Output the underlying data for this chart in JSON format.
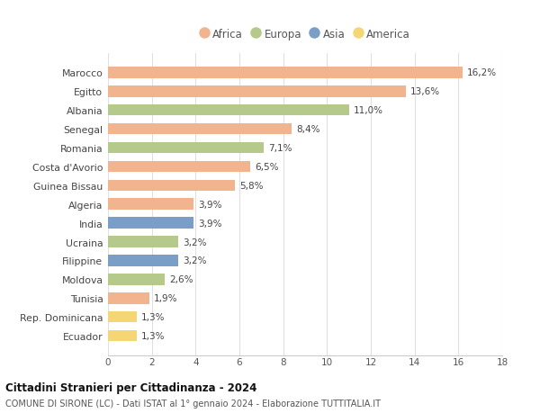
{
  "categories": [
    "Marocco",
    "Egitto",
    "Albania",
    "Senegal",
    "Romania",
    "Costa d'Avorio",
    "Guinea Bissau",
    "Algeria",
    "India",
    "Ucraina",
    "Filippine",
    "Moldova",
    "Tunisia",
    "Rep. Dominicana",
    "Ecuador"
  ],
  "values": [
    16.2,
    13.6,
    11.0,
    8.4,
    7.1,
    6.5,
    5.8,
    3.9,
    3.9,
    3.2,
    3.2,
    2.6,
    1.9,
    1.3,
    1.3
  ],
  "labels": [
    "16,2%",
    "13,6%",
    "11,0%",
    "8,4%",
    "7,1%",
    "6,5%",
    "5,8%",
    "3,9%",
    "3,9%",
    "3,2%",
    "3,2%",
    "2,6%",
    "1,9%",
    "1,3%",
    "1,3%"
  ],
  "continents": [
    "Africa",
    "Africa",
    "Europa",
    "Africa",
    "Europa",
    "Africa",
    "Africa",
    "Africa",
    "Asia",
    "Europa",
    "Asia",
    "Europa",
    "Africa",
    "America",
    "America"
  ],
  "colors": {
    "Africa": "#F2B48E",
    "Europa": "#B5C98A",
    "Asia": "#7B9EC7",
    "America": "#F5D674"
  },
  "legend_order": [
    "Africa",
    "Europa",
    "Asia",
    "America"
  ],
  "xlim": [
    0,
    18
  ],
  "xticks": [
    0,
    2,
    4,
    6,
    8,
    10,
    12,
    14,
    16,
    18
  ],
  "title": "Cittadini Stranieri per Cittadinanza - 2024",
  "subtitle": "COMUNE DI SIRONE (LC) - Dati ISTAT al 1° gennaio 2024 - Elaborazione TUTTITALIA.IT",
  "background_color": "#ffffff",
  "grid_color": "#e0e0e0",
  "bar_height": 0.6
}
